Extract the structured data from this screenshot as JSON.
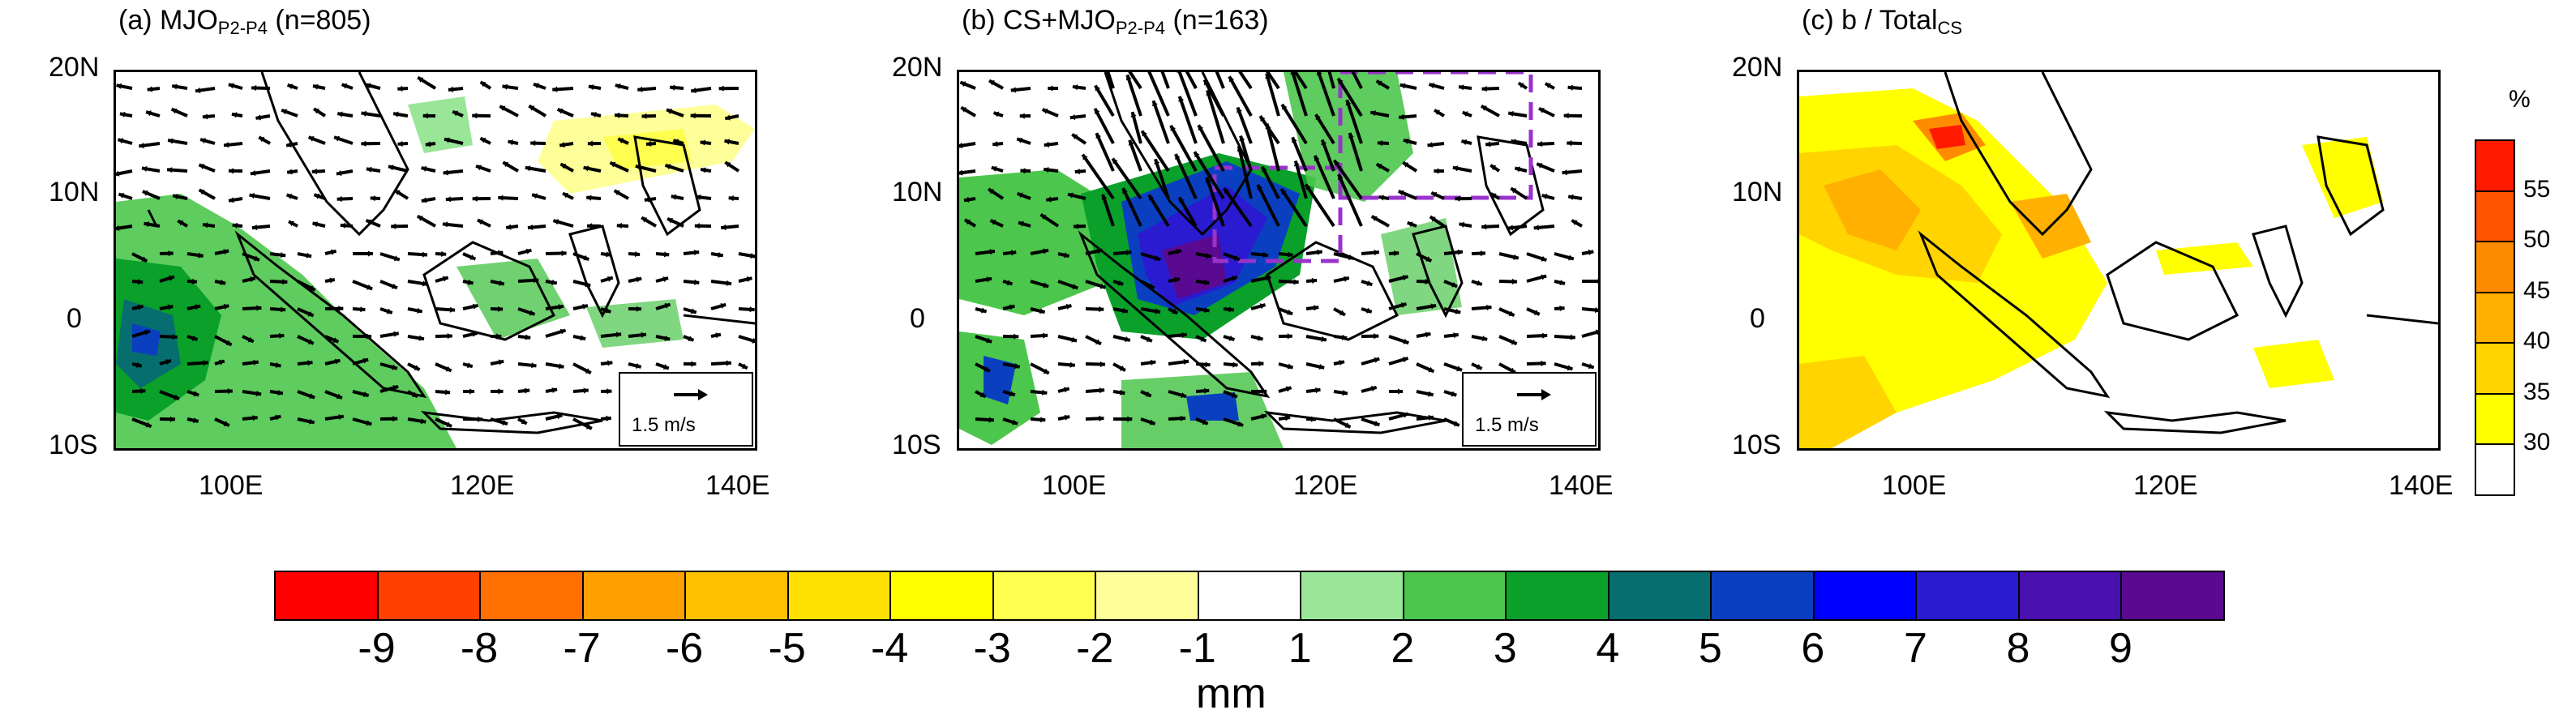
{
  "panels": [
    {
      "id": "a",
      "title_prefix": "(a) MJO",
      "title_sub": "P2-P4",
      "title_suffix": " (n=805)",
      "ref_vector": "1.5 m/s"
    },
    {
      "id": "b",
      "title_prefix": "(b) CS+MJO",
      "title_sub": "P2-P4",
      "title_suffix": " (n=163)",
      "ref_vector": "1.5 m/s"
    },
    {
      "id": "c",
      "title_prefix": "(c) b / Total",
      "title_sub": "CS",
      "title_suffix": "",
      "ref_vector": ""
    }
  ],
  "axes": {
    "lat_labels": [
      "20N",
      "10N",
      "0",
      "10S"
    ],
    "lon_labels": [
      "100E",
      "120E",
      "140E"
    ]
  },
  "colorbar_main": {
    "unit": "mm",
    "labels": [
      "-9",
      "-8",
      "-7",
      "-6",
      "-5",
      "-4",
      "-3",
      "-2",
      "-1",
      "1",
      "2",
      "3",
      "4",
      "5",
      "6",
      "7",
      "8",
      "9"
    ],
    "colors": [
      "#ff0000",
      "#ff4000",
      "#ff7000",
      "#ffa000",
      "#ffc000",
      "#ffe000",
      "#ffff00",
      "#ffff50",
      "#ffff99",
      "#ffffff",
      "#99e699",
      "#4cc64c",
      "#0aa02a",
      "#066e6e",
      "#0a40c0",
      "#0000ff",
      "#2a1ad0",
      "#4a10b0",
      "#5a0a90"
    ]
  },
  "colorbar_c": {
    "unit": "%",
    "labels": [
      "55",
      "50",
      "45",
      "40",
      "35",
      "30"
    ],
    "colors": [
      "#ff1a00",
      "#ff5500",
      "#ff8c00",
      "#ffb000",
      "#ffd400",
      "#ffff00",
      "#ffffff"
    ]
  },
  "colors": {
    "box_outline": "#9933cc",
    "vector": "#000000",
    "coast": "#000000"
  }
}
